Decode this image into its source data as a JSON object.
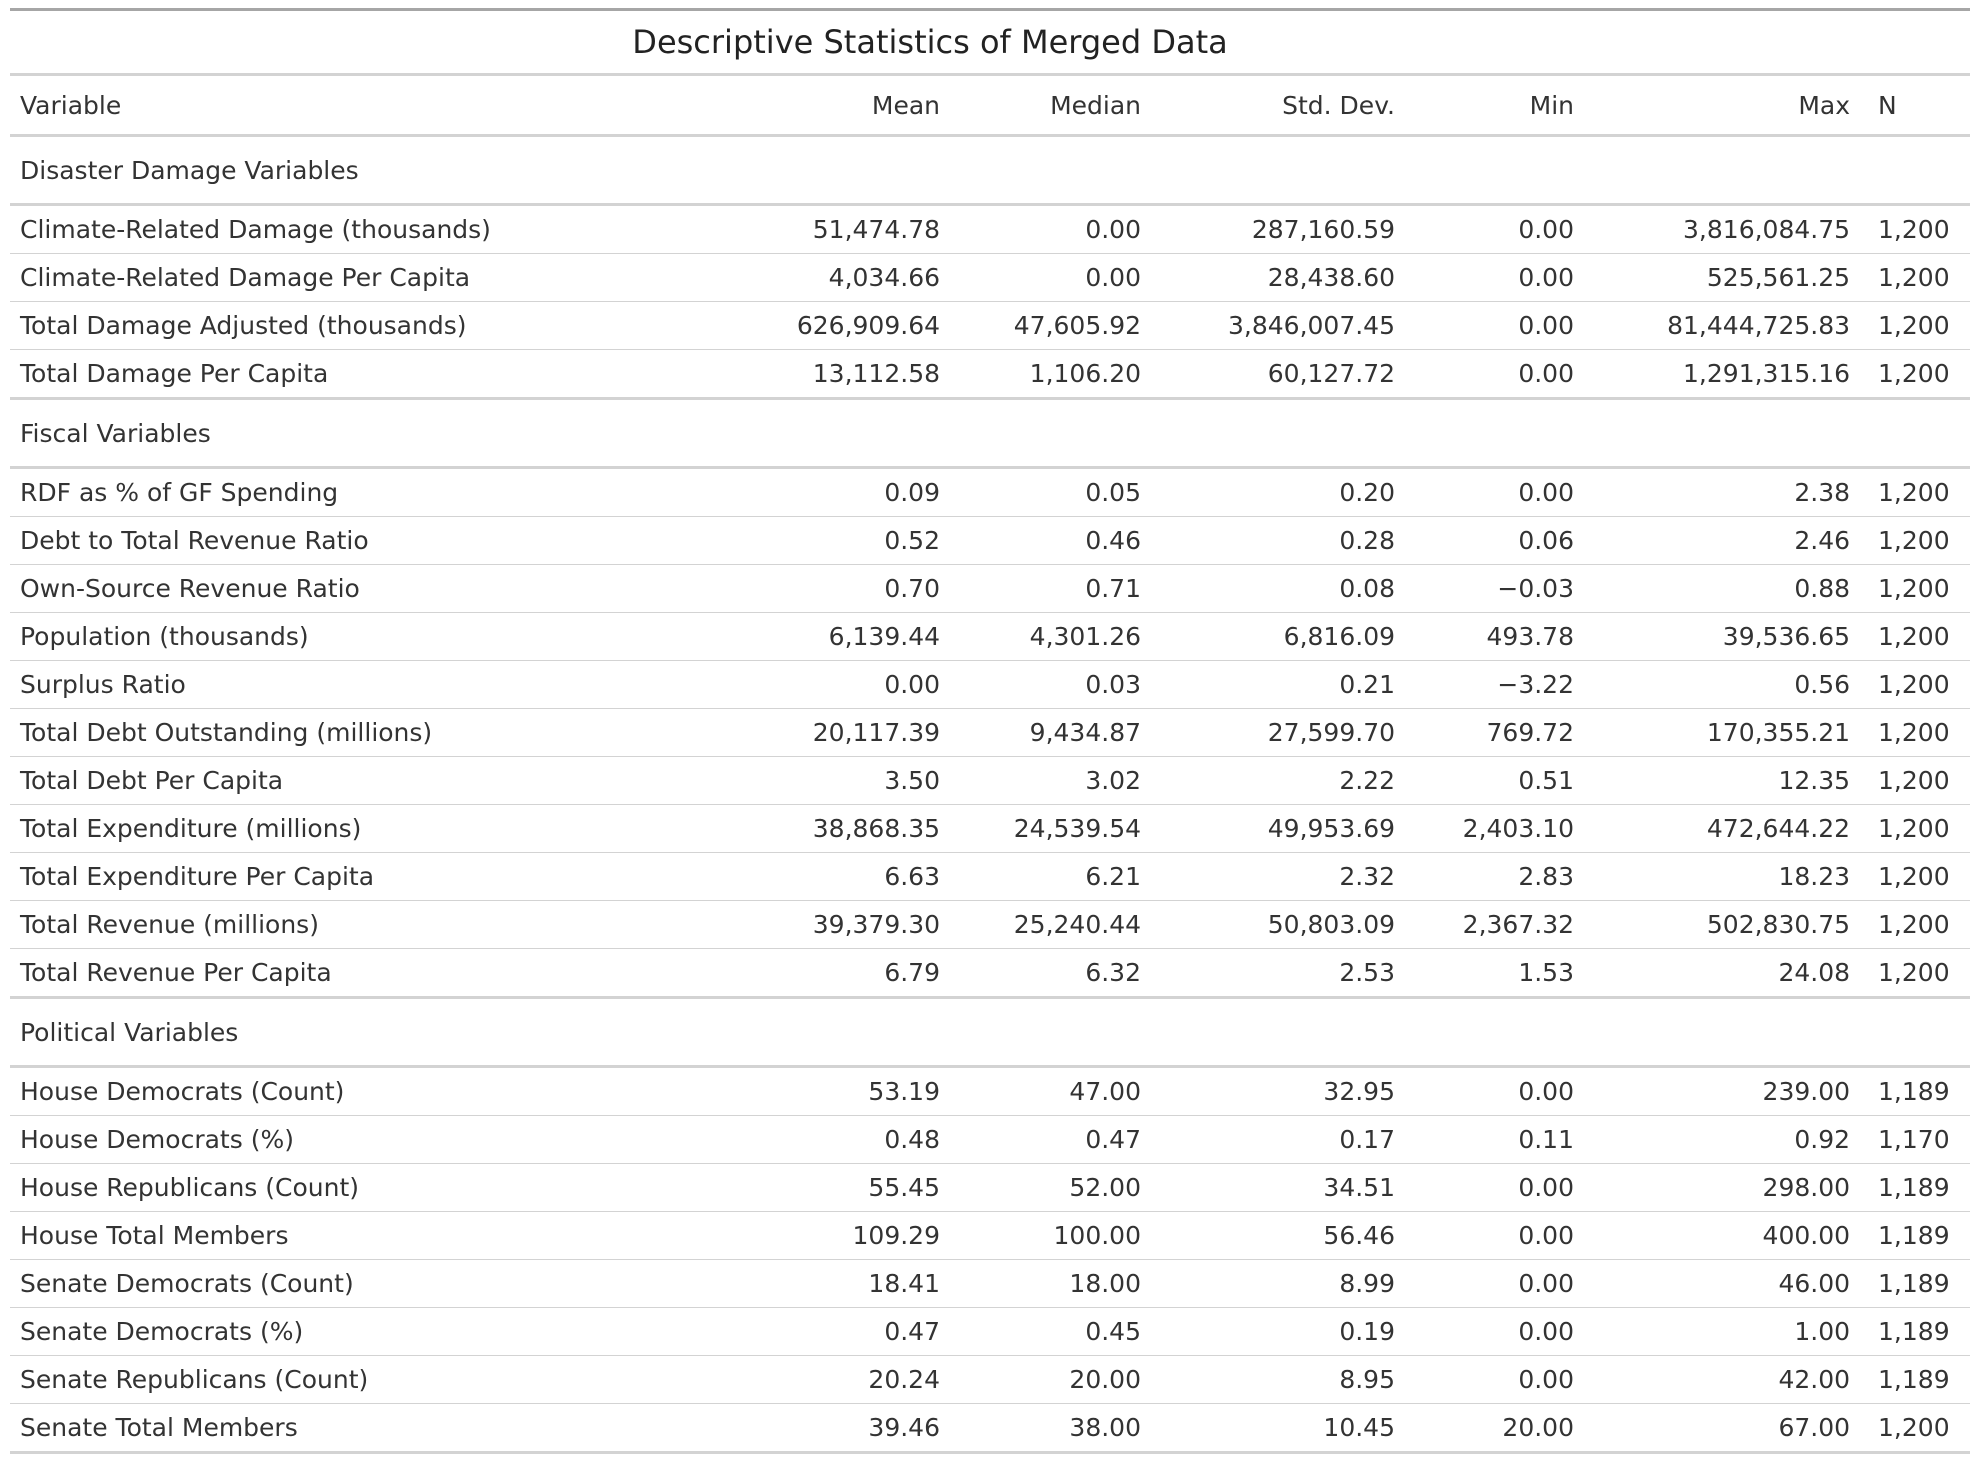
{
  "table": {
    "title": "Descriptive Statistics of Merged Data",
    "columns": [
      "Variable",
      "Mean",
      "Median",
      "Std. Dev.",
      "Min",
      "Max",
      "N"
    ],
    "groups": [
      {
        "label": "Disaster Damage Variables",
        "rows": [
          {
            "variable": "Climate-Related Damage (thousands)",
            "mean": "51,474.78",
            "median": "0.00",
            "sd": "287,160.59",
            "min": "0.00",
            "max": "3,816,084.75",
            "n": "1,200"
          },
          {
            "variable": "Climate-Related Damage Per Capita",
            "mean": "4,034.66",
            "median": "0.00",
            "sd": "28,438.60",
            "min": "0.00",
            "max": "525,561.25",
            "n": "1,200"
          },
          {
            "variable": "Total Damage Adjusted (thousands)",
            "mean": "626,909.64",
            "median": "47,605.92",
            "sd": "3,846,007.45",
            "min": "0.00",
            "max": "81,444,725.83",
            "n": "1,200"
          },
          {
            "variable": "Total Damage Per Capita",
            "mean": "13,112.58",
            "median": "1,106.20",
            "sd": "60,127.72",
            "min": "0.00",
            "max": "1,291,315.16",
            "n": "1,200"
          }
        ]
      },
      {
        "label": "Fiscal Variables",
        "rows": [
          {
            "variable": "RDF as % of GF Spending",
            "mean": "0.09",
            "median": "0.05",
            "sd": "0.20",
            "min": "0.00",
            "max": "2.38",
            "n": "1,200"
          },
          {
            "variable": "Debt to Total Revenue Ratio",
            "mean": "0.52",
            "median": "0.46",
            "sd": "0.28",
            "min": "0.06",
            "max": "2.46",
            "n": "1,200"
          },
          {
            "variable": "Own-Source Revenue Ratio",
            "mean": "0.70",
            "median": "0.71",
            "sd": "0.08",
            "min": "−0.03",
            "max": "0.88",
            "n": "1,200"
          },
          {
            "variable": "Population (thousands)",
            "mean": "6,139.44",
            "median": "4,301.26",
            "sd": "6,816.09",
            "min": "493.78",
            "max": "39,536.65",
            "n": "1,200"
          },
          {
            "variable": "Surplus Ratio",
            "mean": "0.00",
            "median": "0.03",
            "sd": "0.21",
            "min": "−3.22",
            "max": "0.56",
            "n": "1,200"
          },
          {
            "variable": "Total Debt Outstanding (millions)",
            "mean": "20,117.39",
            "median": "9,434.87",
            "sd": "27,599.70",
            "min": "769.72",
            "max": "170,355.21",
            "n": "1,200"
          },
          {
            "variable": "Total Debt Per Capita",
            "mean": "3.50",
            "median": "3.02",
            "sd": "2.22",
            "min": "0.51",
            "max": "12.35",
            "n": "1,200"
          },
          {
            "variable": "Total Expenditure (millions)",
            "mean": "38,868.35",
            "median": "24,539.54",
            "sd": "49,953.69",
            "min": "2,403.10",
            "max": "472,644.22",
            "n": "1,200"
          },
          {
            "variable": "Total Expenditure Per Capita",
            "mean": "6.63",
            "median": "6.21",
            "sd": "2.32",
            "min": "2.83",
            "max": "18.23",
            "n": "1,200"
          },
          {
            "variable": "Total Revenue (millions)",
            "mean": "39,379.30",
            "median": "25,240.44",
            "sd": "50,803.09",
            "min": "2,367.32",
            "max": "502,830.75",
            "n": "1,200"
          },
          {
            "variable": "Total Revenue Per Capita",
            "mean": "6.79",
            "median": "6.32",
            "sd": "2.53",
            "min": "1.53",
            "max": "24.08",
            "n": "1,200"
          }
        ]
      },
      {
        "label": "Political Variables",
        "rows": [
          {
            "variable": "House Democrats (Count)",
            "mean": "53.19",
            "median": "47.00",
            "sd": "32.95",
            "min": "0.00",
            "max": "239.00",
            "n": "1,189"
          },
          {
            "variable": "House Democrats (%)",
            "mean": "0.48",
            "median": "0.47",
            "sd": "0.17",
            "min": "0.11",
            "max": "0.92",
            "n": "1,170"
          },
          {
            "variable": "House Republicans (Count)",
            "mean": "55.45",
            "median": "52.00",
            "sd": "34.51",
            "min": "0.00",
            "max": "298.00",
            "n": "1,189"
          },
          {
            "variable": "House Total Members",
            "mean": "109.29",
            "median": "100.00",
            "sd": "56.46",
            "min": "0.00",
            "max": "400.00",
            "n": "1,189"
          },
          {
            "variable": "Senate Democrats (Count)",
            "mean": "18.41",
            "median": "18.00",
            "sd": "8.99",
            "min": "0.00",
            "max": "46.00",
            "n": "1,189"
          },
          {
            "variable": "Senate Democrats (%)",
            "mean": "0.47",
            "median": "0.45",
            "sd": "0.19",
            "min": "0.00",
            "max": "1.00",
            "n": "1,189"
          },
          {
            "variable": "Senate Republicans (Count)",
            "mean": "20.24",
            "median": "20.00",
            "sd": "8.95",
            "min": "0.00",
            "max": "42.00",
            "n": "1,189"
          },
          {
            "variable": "Senate Total Members",
            "mean": "39.46",
            "median": "38.00",
            "sd": "10.45",
            "min": "20.00",
            "max": "67.00",
            "n": "1,200"
          }
        ]
      }
    ]
  }
}
